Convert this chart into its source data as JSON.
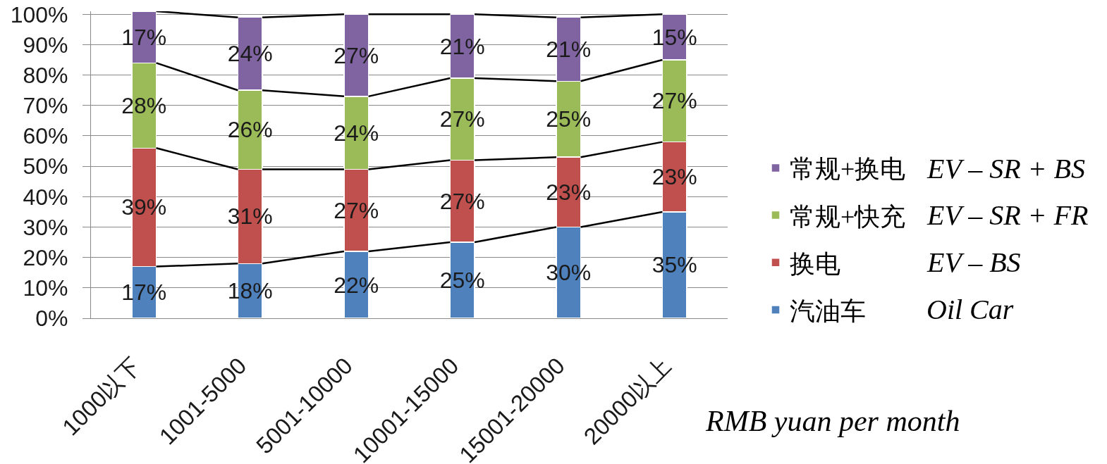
{
  "chart_data": {
    "type": "bar",
    "stacked": true,
    "categories": [
      "1000以下",
      "1001-5000",
      "5001-10000",
      "10001-15000",
      "15001-20000",
      "20000以上"
    ],
    "xlabel": "RMB yuan per month",
    "series": [
      {
        "name": "汽油车",
        "color": "#4f81bd",
        "values": [
          17,
          18,
          22,
          25,
          30,
          35
        ],
        "value_labels": [
          "17%",
          "18%",
          "22%",
          "25%",
          "30%",
          "35%"
        ]
      },
      {
        "name": "换电",
        "color": "#c0504d",
        "values": [
          39,
          31,
          27,
          27,
          23,
          23
        ],
        "value_labels": [
          "39%",
          "31%",
          "27%",
          "27%",
          "23%",
          "23%"
        ]
      },
      {
        "name": "常规+快充",
        "color": "#9bbb59",
        "values": [
          28,
          26,
          24,
          27,
          25,
          27
        ],
        "value_labels": [
          "28%",
          "26%",
          "24%",
          "27%",
          "25%",
          "27%"
        ]
      },
      {
        "name": "常规+换电",
        "color": "#8064a2",
        "values": [
          17,
          24,
          27,
          21,
          21,
          15
        ],
        "value_labels": [
          "17%",
          "24%",
          "27%",
          "21%",
          "21%",
          "15%"
        ]
      }
    ],
    "annotations": [
      "EV – SR + BS",
      "EV – SR + FR",
      "EV – BS",
      "Oil Car"
    ],
    "ylim": [
      0,
      101
    ],
    "yticks": [
      {
        "value": 0,
        "label": "0%"
      },
      {
        "value": 10,
        "label": "10%"
      },
      {
        "value": 20,
        "label": "20%"
      },
      {
        "value": 30,
        "label": "30%"
      },
      {
        "value": 40,
        "label": "40%"
      },
      {
        "value": 50,
        "label": "50%"
      },
      {
        "value": 60,
        "label": "60%"
      },
      {
        "value": 70,
        "label": "70%"
      },
      {
        "value": 80,
        "label": "80%"
      },
      {
        "value": 90,
        "label": "90%"
      },
      {
        "value": 100,
        "label": "100%"
      }
    ],
    "grid": "y",
    "legend": "right"
  }
}
